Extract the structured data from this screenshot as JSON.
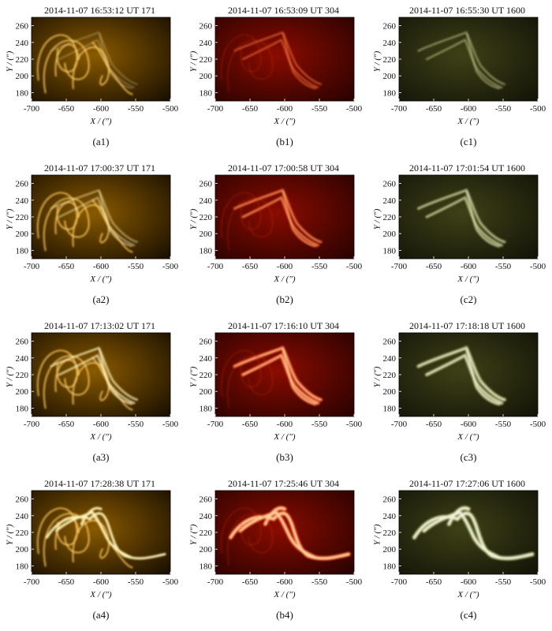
{
  "figure": {
    "columns": [
      {
        "channel": "171",
        "colors": {
          "dark": "#1a1000",
          "mid": "#8a5a00",
          "bright": "#f2b02a",
          "highlight": "#fff2b8"
        },
        "panels": [
          {
            "title": "2014-11-07  16:53:12 UT 171",
            "label": "(a1)"
          },
          {
            "title": "2014-11-07  17:00:37 UT 171",
            "label": "(a2)"
          },
          {
            "title": "2014-11-07  17:13:02 UT 171",
            "label": "(a3)"
          },
          {
            "title": "2014-11-07  17:28:38 UT 171",
            "label": "(a4)"
          }
        ]
      },
      {
        "channel": "304",
        "colors": {
          "dark": "#2a0200",
          "mid": "#8a0c00",
          "bright": "#e03808",
          "highlight": "#ffd7a0"
        },
        "panels": [
          {
            "title": "2014-11-07  16:53:09 UT 304",
            "label": "(b1)"
          },
          {
            "title": "2014-11-07  17:00:58 UT 304",
            "label": "(b2)"
          },
          {
            "title": "2014-11-07  17:16:10 UT 304",
            "label": "(b3)"
          },
          {
            "title": "2014-11-07  17:25:46 UT 304",
            "label": "(b4)"
          }
        ]
      },
      {
        "channel": "1600",
        "colors": {
          "dark": "#141408",
          "mid": "#3e4116",
          "bright": "#8f9552",
          "highlight": "#f4f6dc"
        },
        "panels": [
          {
            "title": "2014-11-07  16:55:30 UT 1600",
            "label": "(c1)"
          },
          {
            "title": "2014-11-07  17:01:54 UT 1600",
            "label": "(c2)"
          },
          {
            "title": "2014-11-07  17:18:18 UT 1600",
            "label": "(c3)"
          },
          {
            "title": "2014-11-07  17:27:06 UT 1600",
            "label": "(c4)"
          }
        ]
      }
    ],
    "x_axis": {
      "label": "X / (″)",
      "range": [
        -700,
        -500
      ],
      "ticks": [
        "-700",
        "-650",
        "-600",
        "-550",
        "-500"
      ]
    },
    "y_axis": {
      "label": "Y / (″)",
      "range": [
        170,
        270
      ],
      "ticks": [
        "180",
        "200",
        "220",
        "240",
        "260"
      ]
    }
  }
}
